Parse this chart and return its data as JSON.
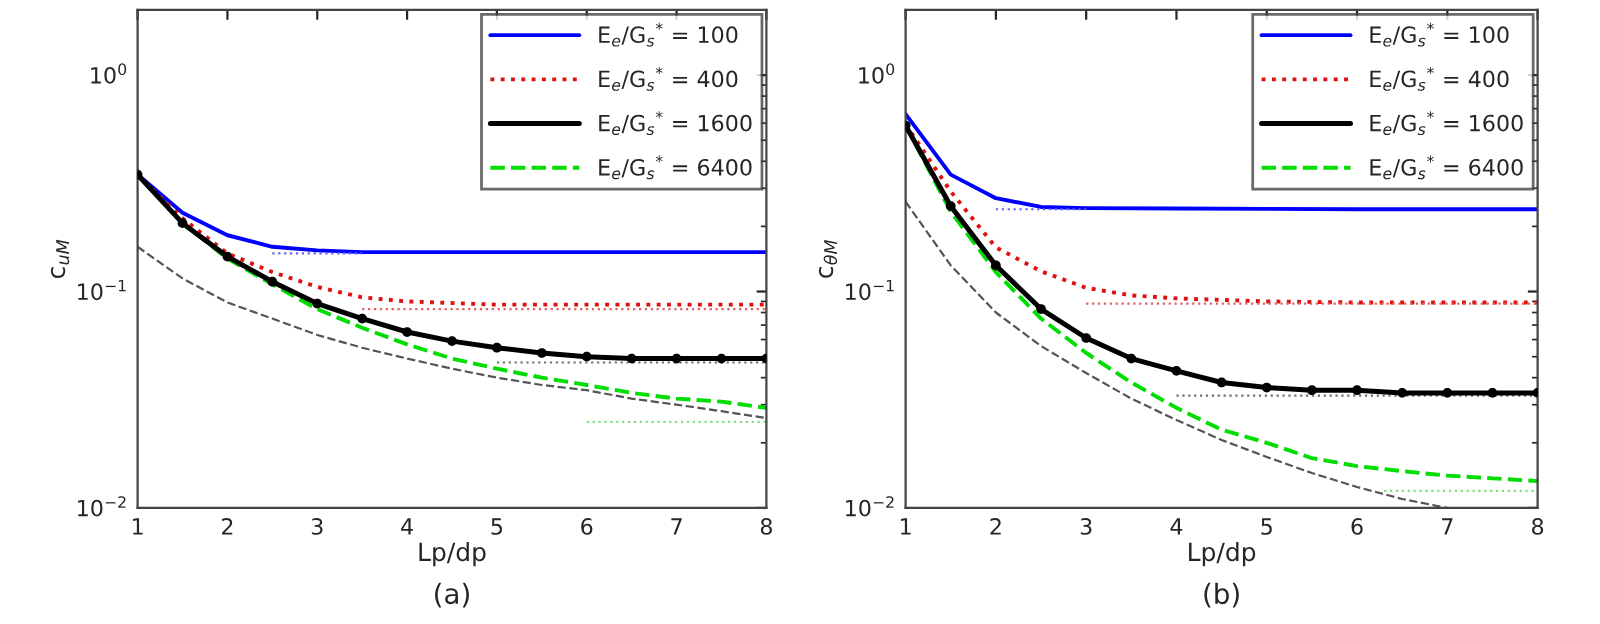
{
  "chart_data": [
    {
      "type": "line",
      "xlabel": "Lp/dp",
      "ylabel": "c$_{uM}$",
      "log": "y",
      "xlim": [
        1,
        8
      ],
      "xticks": [
        1,
        2,
        3,
        4,
        5,
        6,
        7,
        8
      ],
      "ylim": [
        0.01,
        2
      ],
      "yticks": [
        {
          "value": 0.01,
          "label": "10$^{−2}$"
        },
        {
          "value": 0.1,
          "label": "10$^{−1}$"
        },
        {
          "value": 1,
          "label": "10$^{0}$"
        }
      ],
      "grid": false,
      "legend": "top right",
      "annotations": [
        "(a)"
      ],
      "series": [
        {
          "name": "E$_{e}$/G$_{s}$$^{*}$ = 100",
          "color": "#0000ff",
          "line_style": "solid",
          "marker": "none",
          "x": [
            1,
            1.5,
            2,
            2.5,
            3,
            3.5,
            4,
            5,
            6,
            7,
            8
          ],
          "values": [
            0.347,
            0.231,
            0.182,
            0.161,
            0.155,
            0.152,
            0.152,
            0.152,
            0.152,
            0.152,
            0.152
          ]
        },
        {
          "name": "E$_{e}$/G$_{s}$$^{*}$ = 400",
          "color": "#e01010",
          "line_style": "dotted",
          "marker": "none",
          "x": [
            1,
            1.5,
            2,
            2.5,
            3,
            3.5,
            4,
            5,
            6,
            7,
            8
          ],
          "values": [
            0.347,
            0.218,
            0.15,
            0.123,
            0.105,
            0.094,
            0.09,
            0.087,
            0.087,
            0.087,
            0.087
          ]
        },
        {
          "name": "E$_{e}$/G$_{s}$$^{*}$ = 1600",
          "color": "#000000",
          "line_style": "solid",
          "marker": "circle",
          "x": [
            1,
            1.5,
            2,
            2.5,
            3,
            3.5,
            4,
            4.5,
            5,
            5.5,
            6,
            6.5,
            7,
            7.5,
            8
          ],
          "values": [
            0.347,
            0.207,
            0.145,
            0.111,
            0.088,
            0.075,
            0.065,
            0.059,
            0.055,
            0.052,
            0.05,
            0.049,
            0.049,
            0.049,
            0.049
          ]
        },
        {
          "name": "E$_{e}$/G$_{s}$$^{*}$ = 6400",
          "color": "#00dd00",
          "line_style": "dashed",
          "marker": "none",
          "x": [
            1,
            1.5,
            2,
            2.5,
            3,
            3.5,
            4,
            4.5,
            5,
            5.5,
            6,
            6.5,
            7,
            7.5,
            8
          ],
          "values": [
            0.347,
            0.207,
            0.142,
            0.108,
            0.083,
            0.068,
            0.057,
            0.049,
            0.044,
            0.04,
            0.037,
            0.034,
            0.032,
            0.031,
            0.029
          ]
        },
        {
          "color": "#555555",
          "line_style": "dashed",
          "marker": "none",
          "x": [
            1,
            1.5,
            2,
            2.5,
            3,
            3.5,
            4,
            4.5,
            5,
            5.5,
            6,
            6.5,
            7,
            7.5,
            8
          ],
          "values": [
            0.161,
            0.115,
            0.089,
            0.075,
            0.063,
            0.055,
            0.049,
            0.044,
            0.04,
            0.037,
            0.035,
            0.032,
            0.03,
            0.028,
            0.026
          ]
        },
        {
          "color": "#6060ff",
          "line_style": "dotted",
          "marker": "none",
          "x": [
            2.5,
            3.5
          ],
          "values": [
            0.15,
            0.15
          ]
        },
        {
          "color": "#e06060",
          "line_style": "dotted",
          "marker": "none",
          "x": [
            3.5,
            8
          ],
          "values": [
            0.083,
            0.083
          ]
        },
        {
          "color": "#707070",
          "line_style": "dotted",
          "marker": "none",
          "x": [
            5,
            8
          ],
          "values": [
            0.047,
            0.047
          ]
        },
        {
          "color": "#80e080",
          "line_style": "dotted",
          "marker": "none",
          "x": [
            6,
            8
          ],
          "values": [
            0.025,
            0.025
          ]
        }
      ]
    },
    {
      "type": "line",
      "xlabel": "Lp/dp",
      "ylabel": "c$_{θM}$",
      "log": "y",
      "xlim": [
        1,
        8
      ],
      "xticks": [
        1,
        2,
        3,
        4,
        5,
        6,
        7,
        8
      ],
      "ylim": [
        0.01,
        2
      ],
      "yticks": [
        {
          "value": 0.01,
          "label": "10$^{−2}$"
        },
        {
          "value": 0.1,
          "label": "10$^{−1}$"
        },
        {
          "value": 1,
          "label": "10$^{0}$"
        }
      ],
      "grid": false,
      "legend": "top right",
      "annotations": [
        "(b)"
      ],
      "series": [
        {
          "name": "E$_{e}$/G$_{s}$$^{*}$ = 100",
          "color": "#0000ff",
          "line_style": "solid",
          "marker": "none",
          "x": [
            1,
            1.5,
            2,
            2.5,
            3,
            4,
            5,
            6,
            7,
            8
          ],
          "values": [
            0.661,
            0.347,
            0.27,
            0.246,
            0.243,
            0.242,
            0.241,
            0.24,
            0.24,
            0.24
          ]
        },
        {
          "name": "E$_{e}$/G$_{s}$$^{*}$ = 400",
          "color": "#e01010",
          "line_style": "dotted",
          "marker": "none",
          "x": [
            1,
            1.5,
            2,
            2.5,
            3,
            3.5,
            4,
            5,
            6,
            7,
            8
          ],
          "values": [
            0.593,
            0.29,
            0.16,
            0.124,
            0.104,
            0.096,
            0.093,
            0.09,
            0.089,
            0.089,
            0.089
          ]
        },
        {
          "name": "E$_{e}$/G$_{s}$$^{*}$ = 1600",
          "color": "#000000",
          "line_style": "solid",
          "marker": "circle",
          "x": [
            1,
            1.5,
            2,
            2.5,
            3,
            3.5,
            4,
            4.5,
            5,
            5.5,
            6,
            6.5,
            7,
            7.5,
            8
          ],
          "values": [
            0.585,
            0.248,
            0.132,
            0.083,
            0.061,
            0.049,
            0.043,
            0.038,
            0.036,
            0.035,
            0.035,
            0.034,
            0.034,
            0.034,
            0.034
          ]
        },
        {
          "name": "E$_{e}$/G$_{s}$$^{*}$ = 6400",
          "color": "#00dd00",
          "line_style": "dashed",
          "marker": "none",
          "x": [
            1,
            1.5,
            2,
            2.5,
            3,
            3.5,
            4,
            4.5,
            5,
            5.5,
            6,
            6.5,
            7,
            7.5,
            8
          ],
          "values": [
            0.585,
            0.234,
            0.123,
            0.075,
            0.052,
            0.038,
            0.029,
            0.023,
            0.02,
            0.017,
            0.0156,
            0.0148,
            0.0141,
            0.0137,
            0.0133
          ]
        },
        {
          "color": "#555555",
          "line_style": "dashed",
          "marker": "none",
          "x": [
            1,
            1.5,
            2,
            2.5,
            3,
            3.5,
            4,
            4.5,
            5,
            5.5,
            6,
            6.5,
            7
          ],
          "values": [
            0.26,
            0.132,
            0.08,
            0.056,
            0.042,
            0.032,
            0.0255,
            0.0206,
            0.0172,
            0.0145,
            0.0125,
            0.011,
            0.01
          ]
        },
        {
          "color": "#6060ff",
          "line_style": "dotted",
          "marker": "none",
          "x": [
            2,
            3
          ],
          "values": [
            0.24,
            0.24
          ]
        },
        {
          "color": "#e06060",
          "line_style": "dotted",
          "marker": "none",
          "x": [
            3,
            8
          ],
          "values": [
            0.088,
            0.088
          ]
        },
        {
          "color": "#707070",
          "line_style": "dotted",
          "marker": "none",
          "x": [
            4,
            8
          ],
          "values": [
            0.033,
            0.033
          ]
        },
        {
          "color": "#80e080",
          "line_style": "dotted",
          "marker": "none",
          "x": [
            6.3,
            8
          ],
          "values": [
            0.012,
            0.012
          ]
        }
      ]
    }
  ]
}
